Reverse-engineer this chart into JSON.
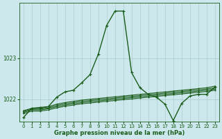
{
  "xlabel": "Graphe pression niveau de la mer (hPa)",
  "bg_color": "#cce8ec",
  "grid_color": "#aacccc",
  "line_color": "#1a5c1a",
  "xlim": [
    -0.5,
    23.5
  ],
  "ylim": [
    1021.45,
    1024.35
  ],
  "yticks": [
    1022,
    1023
  ],
  "xticks": [
    0,
    1,
    2,
    3,
    4,
    5,
    6,
    7,
    8,
    9,
    10,
    11,
    12,
    13,
    14,
    15,
    16,
    17,
    18,
    19,
    20,
    21,
    22,
    23
  ],
  "series": [
    {
      "x": [
        0,
        1,
        2,
        3,
        4,
        5,
        6,
        7,
        8,
        9,
        10,
        11,
        12,
        13,
        14,
        15,
        16,
        17,
        18,
        19,
        20,
        21,
        22,
        23
      ],
      "y": [
        1021.55,
        1021.78,
        1021.8,
        1021.82,
        1022.05,
        1022.18,
        1022.22,
        1022.4,
        1022.6,
        1023.1,
        1023.8,
        1024.15,
        1024.15,
        1022.65,
        1022.28,
        1022.12,
        1022.05,
        1021.88,
        1021.48,
        1021.9,
        1022.08,
        1022.12,
        1022.12,
        1022.3
      ],
      "lw": 1.0,
      "ms": 2.5
    },
    {
      "x": [
        0,
        1,
        2,
        3,
        4,
        5,
        6,
        7,
        8,
        9,
        10,
        11,
        12,
        13,
        14,
        15,
        16,
        17,
        18,
        19,
        20,
        21,
        22,
        23
      ],
      "y": [
        1021.72,
        1021.78,
        1021.78,
        1021.82,
        1021.88,
        1021.92,
        1021.95,
        1021.98,
        1022.0,
        1022.02,
        1022.04,
        1022.06,
        1022.08,
        1022.1,
        1022.12,
        1022.14,
        1022.16,
        1022.18,
        1022.2,
        1022.22,
        1022.24,
        1022.26,
        1022.28,
        1022.32
      ],
      "lw": 0.8,
      "ms": 1.8
    },
    {
      "x": [
        0,
        1,
        2,
        3,
        4,
        5,
        6,
        7,
        8,
        9,
        10,
        11,
        12,
        13,
        14,
        15,
        16,
        17,
        18,
        19,
        20,
        21,
        22,
        23
      ],
      "y": [
        1021.7,
        1021.76,
        1021.76,
        1021.79,
        1021.85,
        1021.89,
        1021.92,
        1021.95,
        1021.97,
        1021.99,
        1022.01,
        1022.03,
        1022.05,
        1022.07,
        1022.09,
        1022.11,
        1022.13,
        1022.15,
        1022.17,
        1022.19,
        1022.21,
        1022.23,
        1022.25,
        1022.28
      ],
      "lw": 0.8,
      "ms": 1.8
    },
    {
      "x": [
        0,
        1,
        2,
        3,
        4,
        5,
        6,
        7,
        8,
        9,
        10,
        11,
        12,
        13,
        14,
        15,
        16,
        17,
        18,
        19,
        20,
        21,
        22,
        23
      ],
      "y": [
        1021.68,
        1021.74,
        1021.74,
        1021.77,
        1021.82,
        1021.86,
        1021.89,
        1021.92,
        1021.94,
        1021.96,
        1021.98,
        1022.0,
        1022.02,
        1022.04,
        1022.06,
        1022.08,
        1022.1,
        1022.12,
        1022.14,
        1022.16,
        1022.18,
        1022.2,
        1022.22,
        1022.25
      ],
      "lw": 0.8,
      "ms": 1.8
    },
    {
      "x": [
        0,
        1,
        2,
        3,
        4,
        5,
        6,
        7,
        8,
        9,
        10,
        11,
        12,
        13,
        14,
        15,
        16,
        17,
        18,
        19,
        20,
        21,
        22,
        23
      ],
      "y": [
        1021.65,
        1021.71,
        1021.71,
        1021.74,
        1021.79,
        1021.83,
        1021.86,
        1021.89,
        1021.91,
        1021.93,
        1021.95,
        1021.97,
        1021.99,
        1022.01,
        1022.03,
        1022.05,
        1022.07,
        1022.09,
        1022.11,
        1022.13,
        1022.15,
        1022.17,
        1022.19,
        1022.22
      ],
      "lw": 0.8,
      "ms": 1.8
    }
  ]
}
